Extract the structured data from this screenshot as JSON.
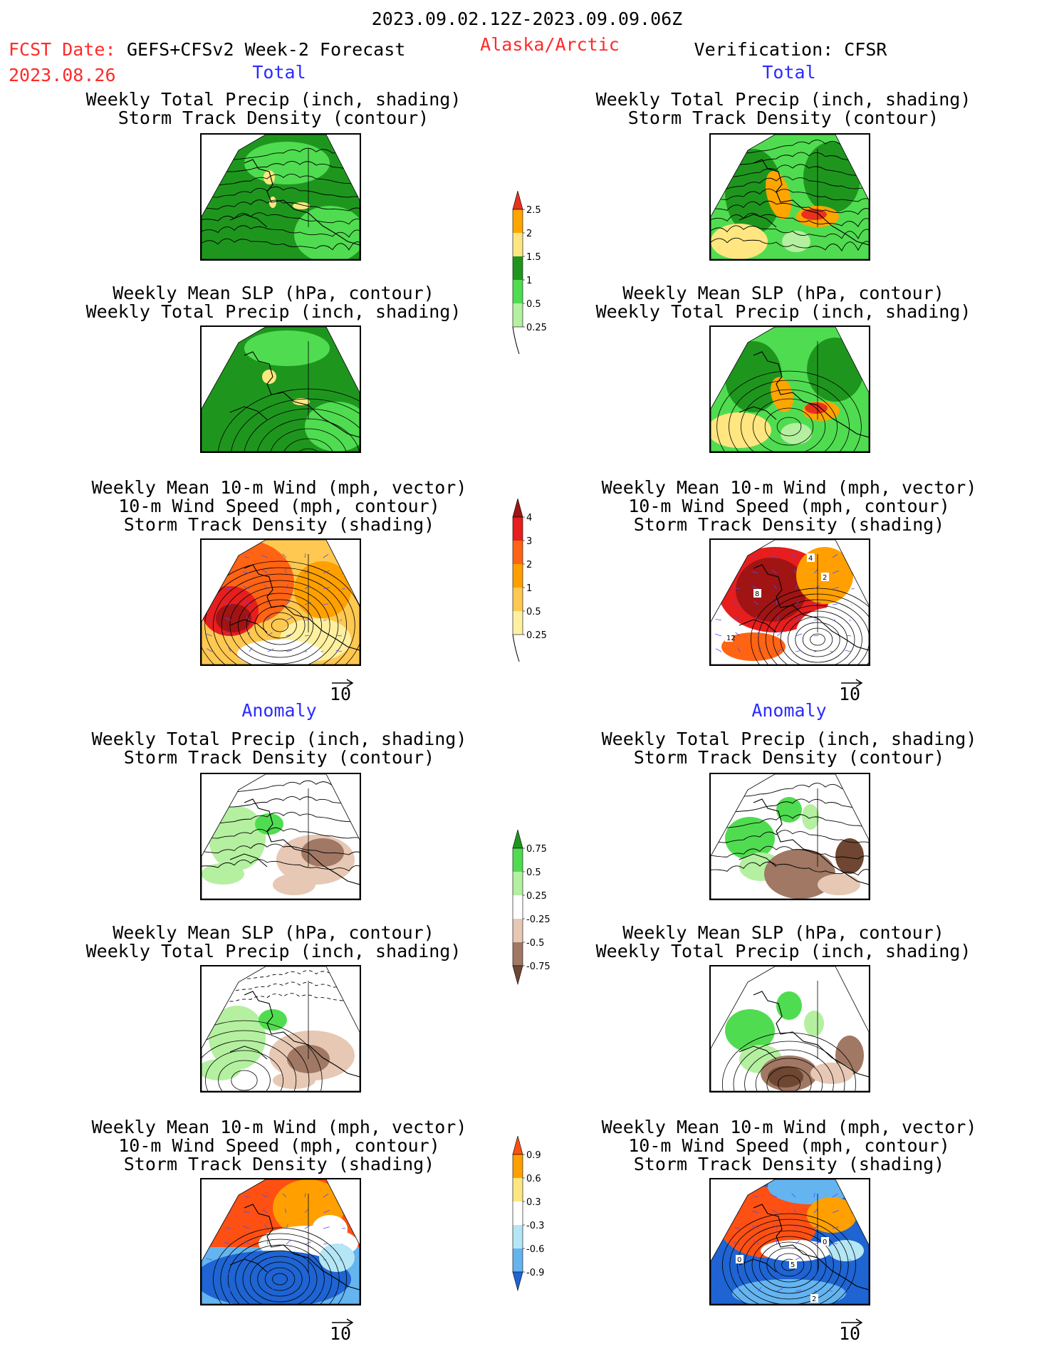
{
  "header": {
    "date_range": "2023.09.02.12Z-2023.09.09.06Z",
    "fcst_label": "FCST Date:",
    "fcst_model": "GEFS+CFSv2 Week-2 Forecast",
    "fcst_date": "2023.08.26",
    "region": "Alaska/Arctic",
    "verification": "Verification: CFSR"
  },
  "sections": {
    "total": "Total",
    "anomaly": "Anomaly"
  },
  "titles": {
    "precip_storm": [
      "Weekly Total Precip (inch, shading)",
      "Storm Track Density (contour)"
    ],
    "slp_precip": [
      "Weekly Mean SLP (hPa, contour)",
      "Weekly Total Precip (inch, shading)"
    ],
    "wind_storm": [
      "Weekly Mean 10-m Wind (mph, vector)",
      "10-m Wind Speed (mph, contour)",
      "Storm Track Density (shading)"
    ]
  },
  "vector_scale": "10",
  "colorbars": {
    "precip_total": {
      "labels": [
        "2.5",
        "2",
        "1.5",
        "1",
        "0.5",
        "0.25"
      ],
      "colors": [
        "#e8321e",
        "#ffa500",
        "#ffe680",
        "#1e961e",
        "#50dc50",
        "#b4f0a0"
      ]
    },
    "storm_total": {
      "labels": [
        "4",
        "3",
        "2",
        "1",
        "0.5",
        "0.25"
      ],
      "colors": [
        "#a01414",
        "#e61e1e",
        "#ff6414",
        "#ffa000",
        "#ffc850",
        "#fff0a0"
      ]
    },
    "precip_anom": {
      "labels": [
        "0.75",
        "0.5",
        "0.25",
        "-0.25",
        "-0.5",
        "-0.75"
      ],
      "colors": [
        "#1e961e",
        "#50dc50",
        "#b4f0a0",
        "#ffffff",
        "#e6c8b4",
        "#a07864",
        "#6e4632"
      ]
    },
    "storm_anom": {
      "labels": [
        "0.9",
        "0.6",
        "0.3",
        "-0.3",
        "-0.6",
        "-0.9"
      ],
      "colors": [
        "#ff5014",
        "#ffa000",
        "#ffe680",
        "#ffffff",
        "#b4e6f5",
        "#64b4f0",
        "#1e64d2"
      ]
    }
  },
  "map_labels": {
    "r3": [
      "4",
      "2",
      "8",
      "12"
    ],
    "r6": [
      "0",
      "5",
      "0",
      "2"
    ]
  }
}
